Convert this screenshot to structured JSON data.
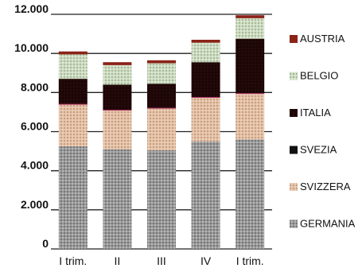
{
  "chart_data": {
    "type": "bar",
    "stacked": true,
    "title": "",
    "xlabel": "",
    "ylabel": "",
    "ylim": [
      0,
      12000
    ],
    "y_ticks": [
      "0",
      "2.000",
      "4.000",
      "6.000",
      "8.000",
      "10.000",
      "12.000"
    ],
    "categories": [
      "I trim.",
      "II",
      "III",
      "IV",
      "I trim."
    ],
    "grid": true,
    "legend_position": "right",
    "series": [
      {
        "name": "GERMANIA",
        "color": "#777777",
        "pattern": "gray-dots",
        "values": [
          5250,
          5100,
          5050,
          5500,
          5600
        ]
      },
      {
        "name": "SVIZZERA",
        "color": "#d4a98a",
        "pattern": "tan-dots",
        "values": [
          2150,
          2000,
          2150,
          2250,
          2350
        ]
      },
      {
        "name": "SVEZIA",
        "color": "#111111",
        "pattern": "solid",
        "values": [
          0,
          0,
          0,
          0,
          0
        ]
      },
      {
        "name": "ITALIA",
        "color": "#2a0a0a",
        "pattern": "dark-maroon",
        "values": [
          1300,
          1300,
          1250,
          1800,
          2800
        ]
      },
      {
        "name": "BELGIO",
        "color": "#b9c9ad",
        "pattern": "green-dots",
        "values": [
          1250,
          1000,
          1050,
          1000,
          1050
        ]
      },
      {
        "name": "AUSTRIA",
        "color": "#8b2318",
        "pattern": "solid-red",
        "values": [
          150,
          150,
          150,
          150,
          150
        ]
      }
    ]
  }
}
